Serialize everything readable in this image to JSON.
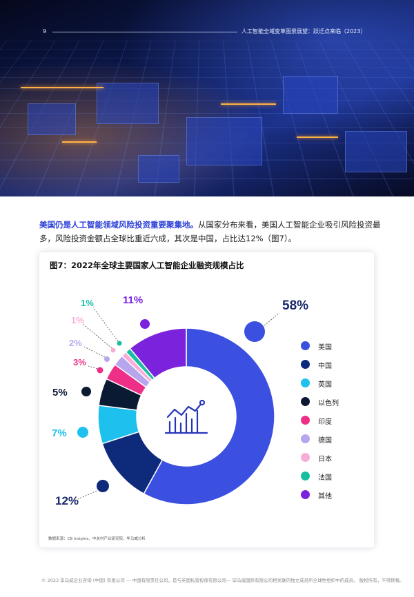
{
  "header": {
    "page_number": "9",
    "report_title": "人工智能全域变革图景展望：跃迁点来临（2023）"
  },
  "intro": {
    "lead": "美国仍是人工智能领域风险投资重要聚集地。",
    "body": "从国家分布来看，美国人工智能企业吸引风险投资最多，风险投资金额占全球比重近六成，其次是中国，占比达12%（图7）。"
  },
  "chart_data": {
    "type": "pie",
    "variant": "donut",
    "title": "图7：2022年全球主要国家人工智能企业融资规模占比",
    "center_icon": "bar-chart-trend-icon",
    "slices": [
      {
        "name": "美国",
        "value": 58,
        "label": "58%",
        "color": "#3b50e0"
      },
      {
        "name": "中国",
        "value": 12,
        "label": "12%",
        "color": "#0e2a7a"
      },
      {
        "name": "英国",
        "value": 7,
        "label": "7%",
        "color": "#1ec0ee"
      },
      {
        "name": "以色列",
        "value": 5,
        "label": "5%",
        "color": "#0b1a33"
      },
      {
        "name": "印度",
        "value": 3,
        "label": "3%",
        "color": "#ee2f87"
      },
      {
        "name": "德国",
        "value": 2,
        "label": "2%",
        "color": "#b7a5ee"
      },
      {
        "name": "日本",
        "value": 1,
        "label": "1%",
        "color": "#f7aed6"
      },
      {
        "name": "法国",
        "value": 1,
        "label": "1%",
        "color": "#17bfa0"
      },
      {
        "name": "其他",
        "value": 11,
        "label": "11%",
        "color": "#7b22dd"
      }
    ],
    "legend_position": "right",
    "source": "数据来源：CB Insights、中关村产业研究院、毕马威分析"
  },
  "footer": {
    "copyright": "© 2023 毕马威企业咨询 (中国) 有限公司 — 中国有限责任公司，是与英国私营担保有限公司— 毕马威国际有限公司相关联的独立成员所全球性组织中的成员。 版权所有，不得转载。"
  }
}
